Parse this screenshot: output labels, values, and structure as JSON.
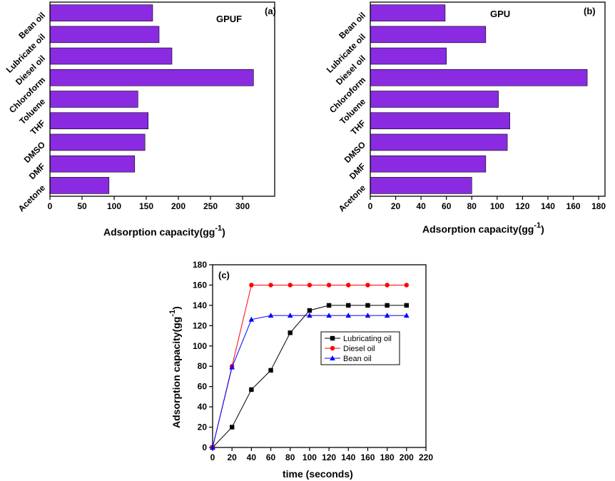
{
  "colors": {
    "bar": "#8a2be2",
    "black": "#000000",
    "diesel": "#ff0000",
    "bean": "#0000ff"
  },
  "chart_data": [
    {
      "type": "bar",
      "orientation": "horizontal",
      "panel_label": "(a)",
      "title": "GPUF",
      "categories": [
        "Bean oil",
        "Lubricate oil",
        "Diesel oil",
        "Chloroform",
        "Toluene",
        "THF",
        "DMSO",
        "DMF",
        "Acetone"
      ],
      "values": [
        160,
        170,
        190,
        317,
        137,
        153,
        148,
        132,
        92
      ],
      "xlim": [
        0,
        350
      ],
      "xticks": [
        "0",
        "50",
        "100",
        "150",
        "200",
        "250",
        "300"
      ],
      "xlabel": "Adsorption capacity(gg",
      "xlabel_sup": "-1",
      "xlabel_close": ")"
    },
    {
      "type": "bar",
      "orientation": "horizontal",
      "panel_label": "(b)",
      "title": "GPU",
      "categories": [
        "Bean oil",
        "Lubricate oil",
        "Diesel oil",
        "Chloroform",
        "Toluene",
        "THF",
        "DMSO",
        "DMF",
        "Acetone"
      ],
      "values": [
        59,
        91,
        60,
        171,
        101,
        110,
        108,
        91,
        80
      ],
      "xlim": [
        0,
        185
      ],
      "xticks": [
        "0",
        "20",
        "40",
        "60",
        "80",
        "100",
        "120",
        "140",
        "160",
        "180"
      ],
      "xlabel": "Adsorption capacity(gg",
      "xlabel_sup": "-1",
      "xlabel_close": ")"
    },
    {
      "type": "line",
      "panel_label": "(c)",
      "x": [
        0,
        20,
        40,
        60,
        80,
        100,
        120,
        140,
        160,
        180,
        200
      ],
      "series": [
        {
          "name": "Lubricating oil",
          "marker": "square",
          "values": [
            0,
            20,
            57,
            76,
            113,
            135,
            140,
            140,
            140,
            140,
            140
          ]
        },
        {
          "name": "Diesel oil",
          "marker": "circle",
          "values": [
            0,
            80,
            160,
            160,
            160,
            160,
            160,
            160,
            160,
            160,
            160
          ]
        },
        {
          "name": "Bean oil",
          "marker": "triangle",
          "values": [
            0,
            79,
            126,
            130,
            130,
            130,
            130,
            130,
            130,
            130,
            130
          ]
        }
      ],
      "xlim": [
        0,
        220
      ],
      "ylim": [
        0,
        180
      ],
      "xticks": [
        "0",
        "20",
        "40",
        "60",
        "80",
        "100",
        "120",
        "140",
        "160",
        "180",
        "200",
        "220"
      ],
      "yticks": [
        "0",
        "20",
        "40",
        "60",
        "80",
        "100",
        "120",
        "140",
        "160",
        "180"
      ],
      "xlabel": "time (seconds)",
      "ylabel": "Adsorption capacity(gg",
      "ylabel_sup": "-1",
      "ylabel_close": ")"
    }
  ]
}
